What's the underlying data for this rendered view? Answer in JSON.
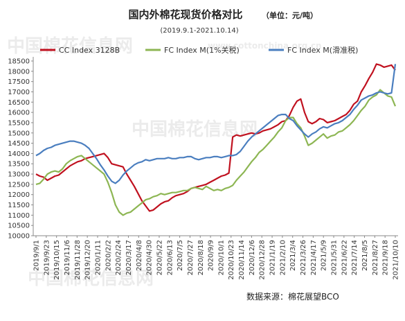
{
  "chart_data": {
    "type": "line",
    "title": "国内外棉花现货价格对比",
    "unit_note": "（单位：元/吨）",
    "subtitle": "(2019.9.1-2021.10.14)",
    "source": "数据来源：棉花展望BCO",
    "watermark": "中国棉花信息网",
    "watermark_url": "www.cottonchina.org.cn",
    "xlabel": "",
    "ylabel": "",
    "x_ticks": [
      "2019/9/1",
      "2019/9/23",
      "2019/10/15",
      "2019/11/6",
      "2019/11/28",
      "2019/12/20",
      "2020/1/11",
      "2020/2/2",
      "2020/2/24",
      "2020/3/17",
      "2020/4/8",
      "2020/4/30",
      "2020/5/22",
      "2020/6/13",
      "2020/7/5",
      "2020/7/27",
      "2020/8/18",
      "2020/9/9",
      "2020/10/1",
      "2020/10/23",
      "2020/11/14",
      "2020/12/6",
      "2020/12/28",
      "2021/1/19",
      "2021/2/10",
      "2021/3/4",
      "2021/3/26",
      "2021/4/17",
      "2021/5/9",
      "2021/5/31",
      "2021/6/22",
      "2021/7/14",
      "2021/8/5",
      "2021/8/27",
      "2021/9/18",
      "2021/10/10"
    ],
    "y_ticks": [
      10000,
      10500,
      11000,
      11500,
      12000,
      12500,
      13000,
      13500,
      14000,
      14500,
      15000,
      15500,
      16000,
      16500,
      17000,
      17500,
      18000,
      18500
    ],
    "ylim": [
      10000,
      18500
    ],
    "grid": false,
    "legend_position": "top",
    "series": [
      {
        "name": "CC Index 3128B",
        "color": "#c0111f",
        "values": [
          13000,
          12900,
          12850,
          12700,
          12800,
          12900,
          12950,
          13100,
          13250,
          13400,
          13500,
          13600,
          13650,
          13750,
          13800,
          13850,
          13900,
          13950,
          14000,
          13800,
          13500,
          13450,
          13400,
          13350,
          13000,
          12700,
          12400,
          12050,
          11700,
          11450,
          11200,
          11250,
          11400,
          11550,
          11650,
          11700,
          11850,
          11950,
          12000,
          12050,
          12150,
          12300,
          12350,
          12400,
          12450,
          12500,
          12600,
          12700,
          12800,
          12900,
          12950,
          13050,
          14800,
          14900,
          14850,
          14900,
          14950,
          15000,
          14950,
          15000,
          15100,
          15150,
          15200,
          15300,
          15400,
          15550,
          15600,
          15850,
          16250,
          16550,
          16650,
          16000,
          15550,
          15450,
          15550,
          15700,
          15650,
          15500,
          15550,
          15600,
          15700,
          15800,
          15900,
          16100,
          16400,
          16550,
          17000,
          17300,
          17650,
          17950,
          18350,
          18300,
          18200,
          18250,
          18300,
          18050
        ]
      },
      {
        "name": "FC Index M(1%关税)",
        "color": "#8db653",
        "values": [
          12500,
          12550,
          12750,
          13000,
          13100,
          13150,
          13100,
          13250,
          13500,
          13650,
          13750,
          13850,
          13900,
          13750,
          13600,
          13450,
          13300,
          13150,
          13000,
          12600,
          12100,
          11500,
          11150,
          11000,
          11100,
          11150,
          11300,
          11450,
          11600,
          11750,
          11800,
          11900,
          11950,
          12050,
          12000,
          12050,
          12100,
          12100,
          12150,
          12200,
          12200,
          12300,
          12350,
          12300,
          12250,
          12400,
          12300,
          12200,
          12250,
          12200,
          12300,
          12350,
          12450,
          12700,
          12900,
          13100,
          13350,
          13600,
          13800,
          14050,
          14200,
          14400,
          14600,
          14800,
          15050,
          15250,
          15600,
          15750,
          15750,
          15450,
          15250,
          14850,
          14400,
          14500,
          14650,
          14800,
          14950,
          14750,
          14850,
          14900,
          15050,
          15100,
          15250,
          15400,
          15600,
          15850,
          16100,
          16300,
          16600,
          16750,
          16850,
          17100,
          16950,
          16800,
          16750,
          16300
        ]
      },
      {
        "name": "FC Index M(滑准税)",
        "color": "#4a7ebf",
        "values": [
          13900,
          14000,
          14150,
          14250,
          14300,
          14400,
          14450,
          14500,
          14550,
          14600,
          14600,
          14550,
          14500,
          14400,
          14250,
          14000,
          13750,
          13450,
          13200,
          12900,
          12650,
          12550,
          12700,
          12950,
          13150,
          13300,
          13450,
          13550,
          13600,
          13700,
          13650,
          13700,
          13750,
          13750,
          13750,
          13800,
          13750,
          13750,
          13800,
          13800,
          13850,
          13850,
          13750,
          13700,
          13750,
          13800,
          13800,
          13850,
          13850,
          13800,
          13850,
          13900,
          13900,
          13950,
          14100,
          14350,
          14600,
          14800,
          14950,
          15100,
          15250,
          15400,
          15550,
          15700,
          15850,
          15900,
          15900,
          15700,
          15600,
          15350,
          15150,
          14950,
          14800,
          14950,
          15050,
          15200,
          15300,
          15250,
          15350,
          15450,
          15500,
          15600,
          15750,
          15900,
          16150,
          16350,
          16600,
          16700,
          16800,
          16850,
          16950,
          17000,
          16950,
          16900,
          16950,
          18350
        ]
      }
    ]
  }
}
